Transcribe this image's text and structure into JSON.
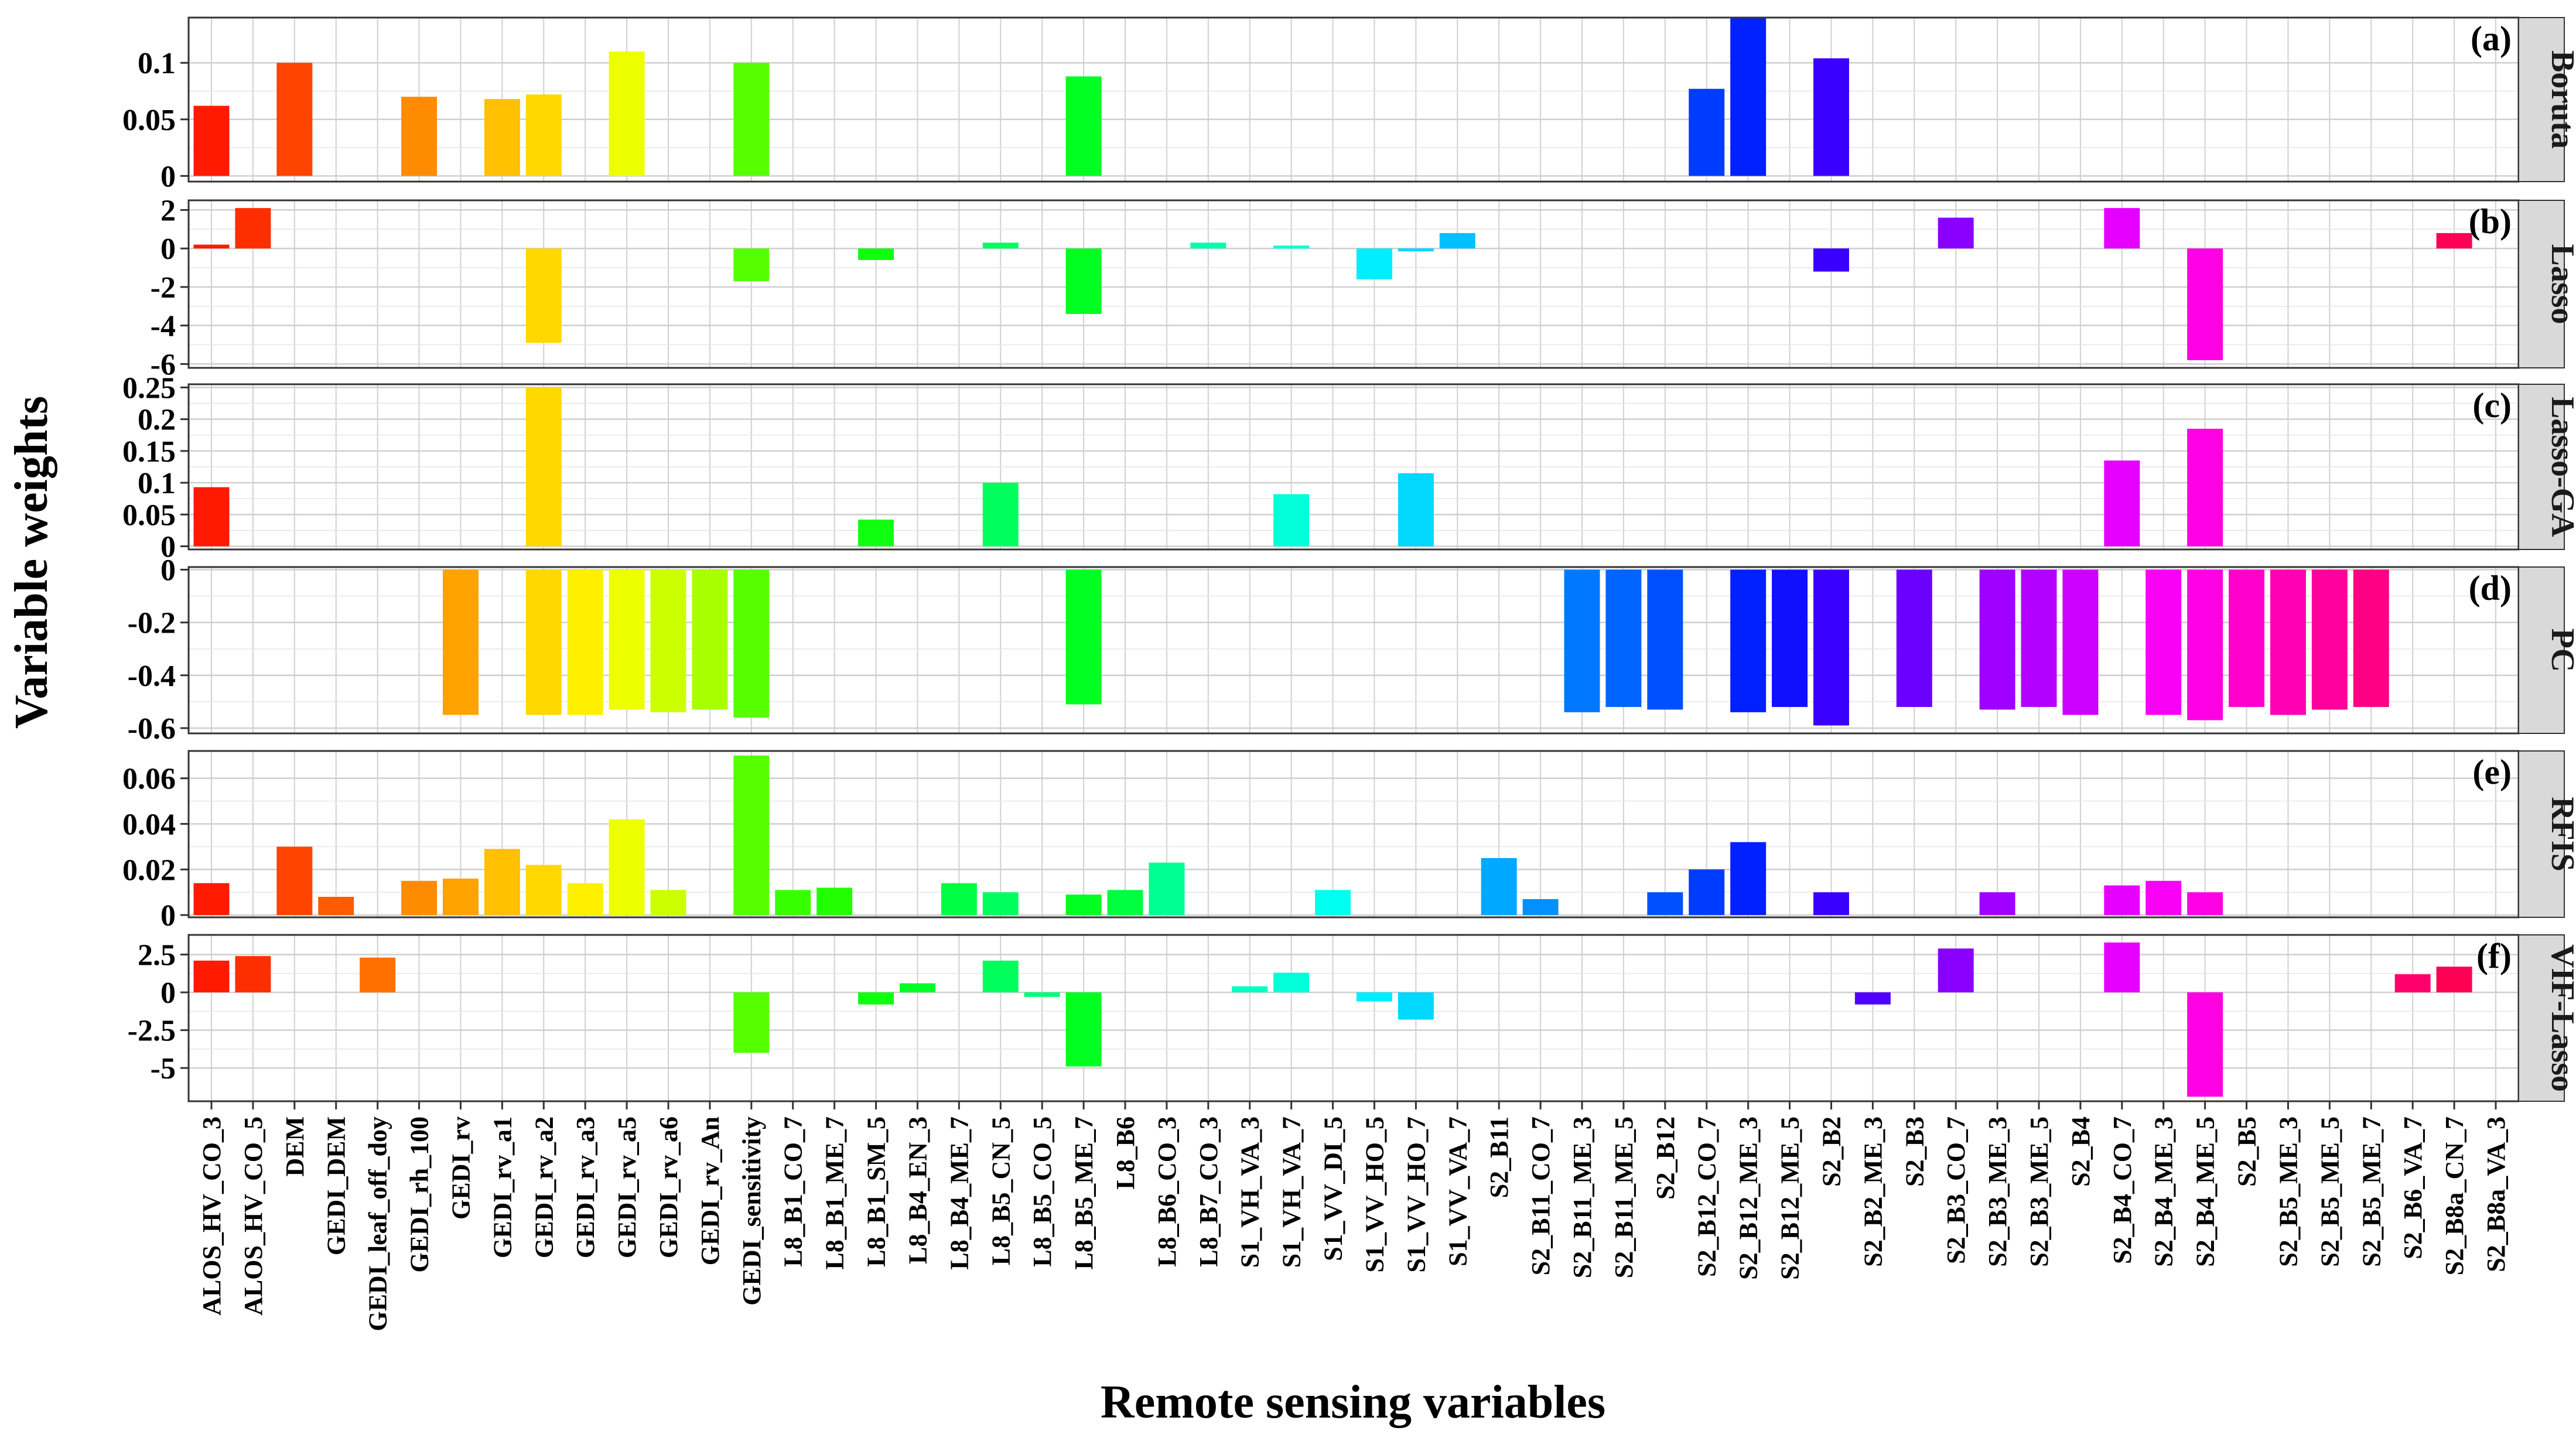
{
  "chart_data": {
    "type": "bar",
    "xlabel": "Remote sensing variables",
    "ylabel": "Variable weights",
    "categories": [
      "ALOS_HV_CO_3",
      "ALOS_HV_CO_5",
      "DEM",
      "GEDI_DEM",
      "GEDI_leaf_off_doy",
      "GEDI_rh_100",
      "GEDI_rv",
      "GEDI_rv_a1",
      "GEDI_rv_a2",
      "GEDI_rv_a3",
      "GEDI_rv_a5",
      "GEDI_rv_a6",
      "GEDI_rv_An",
      "GEDI_sensitivity",
      "L8_B1_CO_7",
      "L8_B1_ME_7",
      "L8_B1_SM_5",
      "L8_B4_EN_3",
      "L8_B4_ME_7",
      "L8_B5_CN_5",
      "L8_B5_CO_5",
      "L8_B5_ME_7",
      "L8_B6",
      "L8_B6_CO_3",
      "L8_B7_CO_3",
      "S1_VH_VA_3",
      "S1_VH_VA_7",
      "S1_VV_DI_5",
      "S1_VV_HO_5",
      "S1_VV_HO_7",
      "S1_VV_VA_7",
      "S2_B11",
      "S2_B11_CO_7",
      "S2_B11_ME_3",
      "S2_B11_ME_5",
      "S2_B12",
      "S2_B12_CO_7",
      "S2_B12_ME_3",
      "S2_B12_ME_5",
      "S2_B2",
      "S2_B2_ME_3",
      "S2_B3",
      "S2_B3_CO_7",
      "S2_B3_ME_3",
      "S2_B3_ME_5",
      "S2_B4",
      "S2_B4_CO_7",
      "S2_B4_ME_3",
      "S2_B4_ME_5",
      "S2_B5",
      "S2_B5_ME_3",
      "S2_B5_ME_5",
      "S2_B5_ME_7",
      "S2_B6_VA_7",
      "S2_B8a_CN_7",
      "S2_B8a_VA_3"
    ],
    "colors": [
      "#ff1a00",
      "#ff2e00",
      "#ff4400",
      "#ff5a00",
      "#ff7000",
      "#ff8c00",
      "#ffa200",
      "#ffc000",
      "#ffd800",
      "#fff000",
      "#eeff00",
      "#ccff00",
      "#a8ff00",
      "#55ff00",
      "#38ff00",
      "#22ff00",
      "#10ff10",
      "#00ff28",
      "#00ff44",
      "#00ff5c",
      "#00ff74",
      "#00ff20",
      "#00ff40",
      "#00ff90",
      "#00ffaa",
      "#00ffc4",
      "#00ffd8",
      "#00fff0",
      "#00eeff",
      "#00d8ff",
      "#00c0ff",
      "#00a8ff",
      "#0090ff",
      "#0078ff",
      "#0064ff",
      "#0050ff",
      "#003cff",
      "#0020ff",
      "#1010ff",
      "#3a00ff",
      "#5000ff",
      "#6a00ff",
      "#8a00ff",
      "#a000ff",
      "#b400ff",
      "#cc00ff",
      "#e600ff",
      "#f800f4",
      "#ff00e4",
      "#ff00cc",
      "#ff00b4",
      "#ff009c",
      "#ff0084",
      "#ff006c",
      "#ff0054",
      "#ff0040"
    ],
    "panels": [
      {
        "tag": "(a)",
        "method": "Boruta",
        "ylim": [
          -0.005,
          0.14
        ],
        "ticks": [
          0,
          0.05,
          0.1
        ],
        "tick_labels": [
          "0",
          "0.05",
          "0.1"
        ],
        "values": [
          0.062,
          null,
          0.1,
          null,
          null,
          0.07,
          null,
          0.068,
          0.072,
          null,
          0.11,
          null,
          null,
          0.1,
          null,
          null,
          null,
          null,
          null,
          null,
          null,
          0.088,
          null,
          null,
          null,
          null,
          null,
          null,
          null,
          null,
          null,
          null,
          null,
          null,
          null,
          null,
          0.077,
          0.14,
          null,
          0.104,
          null,
          null,
          null,
          null,
          null,
          null,
          null,
          null,
          null,
          null,
          null,
          null,
          null,
          null,
          null,
          null
        ]
      },
      {
        "tag": "(b)",
        "method": "Lasso",
        "ylim": [
          -6.2,
          2.5
        ],
        "ticks": [
          -6,
          -4,
          -2,
          0,
          2
        ],
        "tick_labels": [
          "-6",
          "-4",
          "-2",
          "0",
          "2"
        ],
        "values": [
          0.2,
          2.1,
          null,
          null,
          null,
          null,
          null,
          null,
          -4.9,
          null,
          null,
          null,
          null,
          -1.7,
          null,
          null,
          -0.6,
          null,
          null,
          0.3,
          null,
          -3.4,
          null,
          null,
          0.3,
          null,
          0.15,
          null,
          -1.6,
          -0.15,
          0.8,
          null,
          null,
          null,
          null,
          null,
          null,
          null,
          null,
          -1.2,
          null,
          null,
          1.6,
          null,
          null,
          null,
          2.1,
          null,
          -5.8,
          null,
          null,
          null,
          null,
          null,
          0.8,
          null
        ]
      },
      {
        "tag": "(c)",
        "method": "Lasso-GA",
        "ylim": [
          -0.005,
          0.255
        ],
        "ticks": [
          0,
          0.05,
          0.1,
          0.15,
          0.2,
          0.25
        ],
        "tick_labels": [
          "0",
          "0.05",
          "0.1",
          "0.15",
          "0.2",
          "0.25"
        ],
        "values": [
          0.093,
          null,
          null,
          null,
          null,
          null,
          null,
          null,
          0.25,
          null,
          null,
          null,
          null,
          null,
          null,
          null,
          0.042,
          null,
          null,
          0.1,
          null,
          null,
          null,
          null,
          null,
          null,
          0.082,
          null,
          null,
          0.115,
          null,
          null,
          null,
          null,
          null,
          null,
          null,
          null,
          null,
          null,
          null,
          null,
          null,
          null,
          null,
          null,
          0.135,
          null,
          0.185,
          null,
          null,
          null,
          null,
          null,
          null,
          null
        ]
      },
      {
        "tag": "(d)",
        "method": "PC",
        "ylim": [
          -0.62,
          0.01
        ],
        "ticks": [
          -0.6,
          -0.4,
          -0.2,
          0
        ],
        "tick_labels": [
          "-0.6",
          "-0.4",
          "-0.2",
          "0"
        ],
        "values": [
          null,
          null,
          null,
          null,
          null,
          null,
          -0.55,
          null,
          -0.55,
          -0.55,
          -0.53,
          -0.54,
          -0.53,
          -0.56,
          null,
          null,
          null,
          null,
          null,
          null,
          null,
          -0.51,
          null,
          null,
          null,
          null,
          null,
          null,
          null,
          null,
          null,
          null,
          null,
          -0.54,
          -0.52,
          -0.53,
          null,
          -0.54,
          -0.52,
          -0.59,
          null,
          -0.52,
          null,
          -0.53,
          -0.52,
          -0.55,
          null,
          -0.55,
          -0.57,
          -0.52,
          -0.55,
          -0.53,
          -0.52,
          null,
          null,
          null
        ]
      },
      {
        "tag": "(e)",
        "method": "RFIS",
        "ylim": [
          -0.001,
          0.072
        ],
        "ticks": [
          0,
          0.02,
          0.04,
          0.06
        ],
        "tick_labels": [
          "0",
          "0.02",
          "0.04",
          "0.06"
        ],
        "values": [
          0.014,
          null,
          0.03,
          0.008,
          null,
          0.015,
          0.016,
          0.029,
          0.022,
          0.014,
          0.042,
          0.011,
          null,
          0.07,
          0.011,
          0.012,
          null,
          null,
          0.014,
          0.01,
          null,
          0.009,
          0.011,
          0.023,
          null,
          null,
          null,
          0.011,
          null,
          null,
          null,
          0.025,
          0.007,
          null,
          null,
          0.01,
          0.02,
          0.032,
          null,
          0.01,
          null,
          null,
          null,
          0.01,
          null,
          null,
          0.013,
          0.015,
          0.01,
          null,
          null,
          null,
          null,
          null,
          null,
          null
        ]
      },
      {
        "tag": "(f)",
        "method": "VIF-Lasso",
        "ylim": [
          -7.2,
          3.8
        ],
        "ticks": [
          -5,
          -2.5,
          0,
          2.5
        ],
        "tick_labels": [
          "-5",
          "-2.5",
          "0",
          "2.5"
        ],
        "values": [
          2.1,
          2.4,
          null,
          null,
          2.3,
          null,
          null,
          null,
          null,
          null,
          null,
          null,
          null,
          -4.0,
          null,
          null,
          -0.8,
          0.6,
          null,
          2.1,
          -0.3,
          -4.9,
          null,
          null,
          null,
          0.4,
          1.3,
          null,
          -0.6,
          -1.8,
          null,
          null,
          null,
          null,
          null,
          null,
          null,
          null,
          null,
          null,
          -0.8,
          null,
          2.9,
          null,
          null,
          null,
          3.3,
          null,
          -6.9,
          null,
          null,
          null,
          null,
          1.2,
          1.7,
          null
        ]
      }
    ]
  }
}
